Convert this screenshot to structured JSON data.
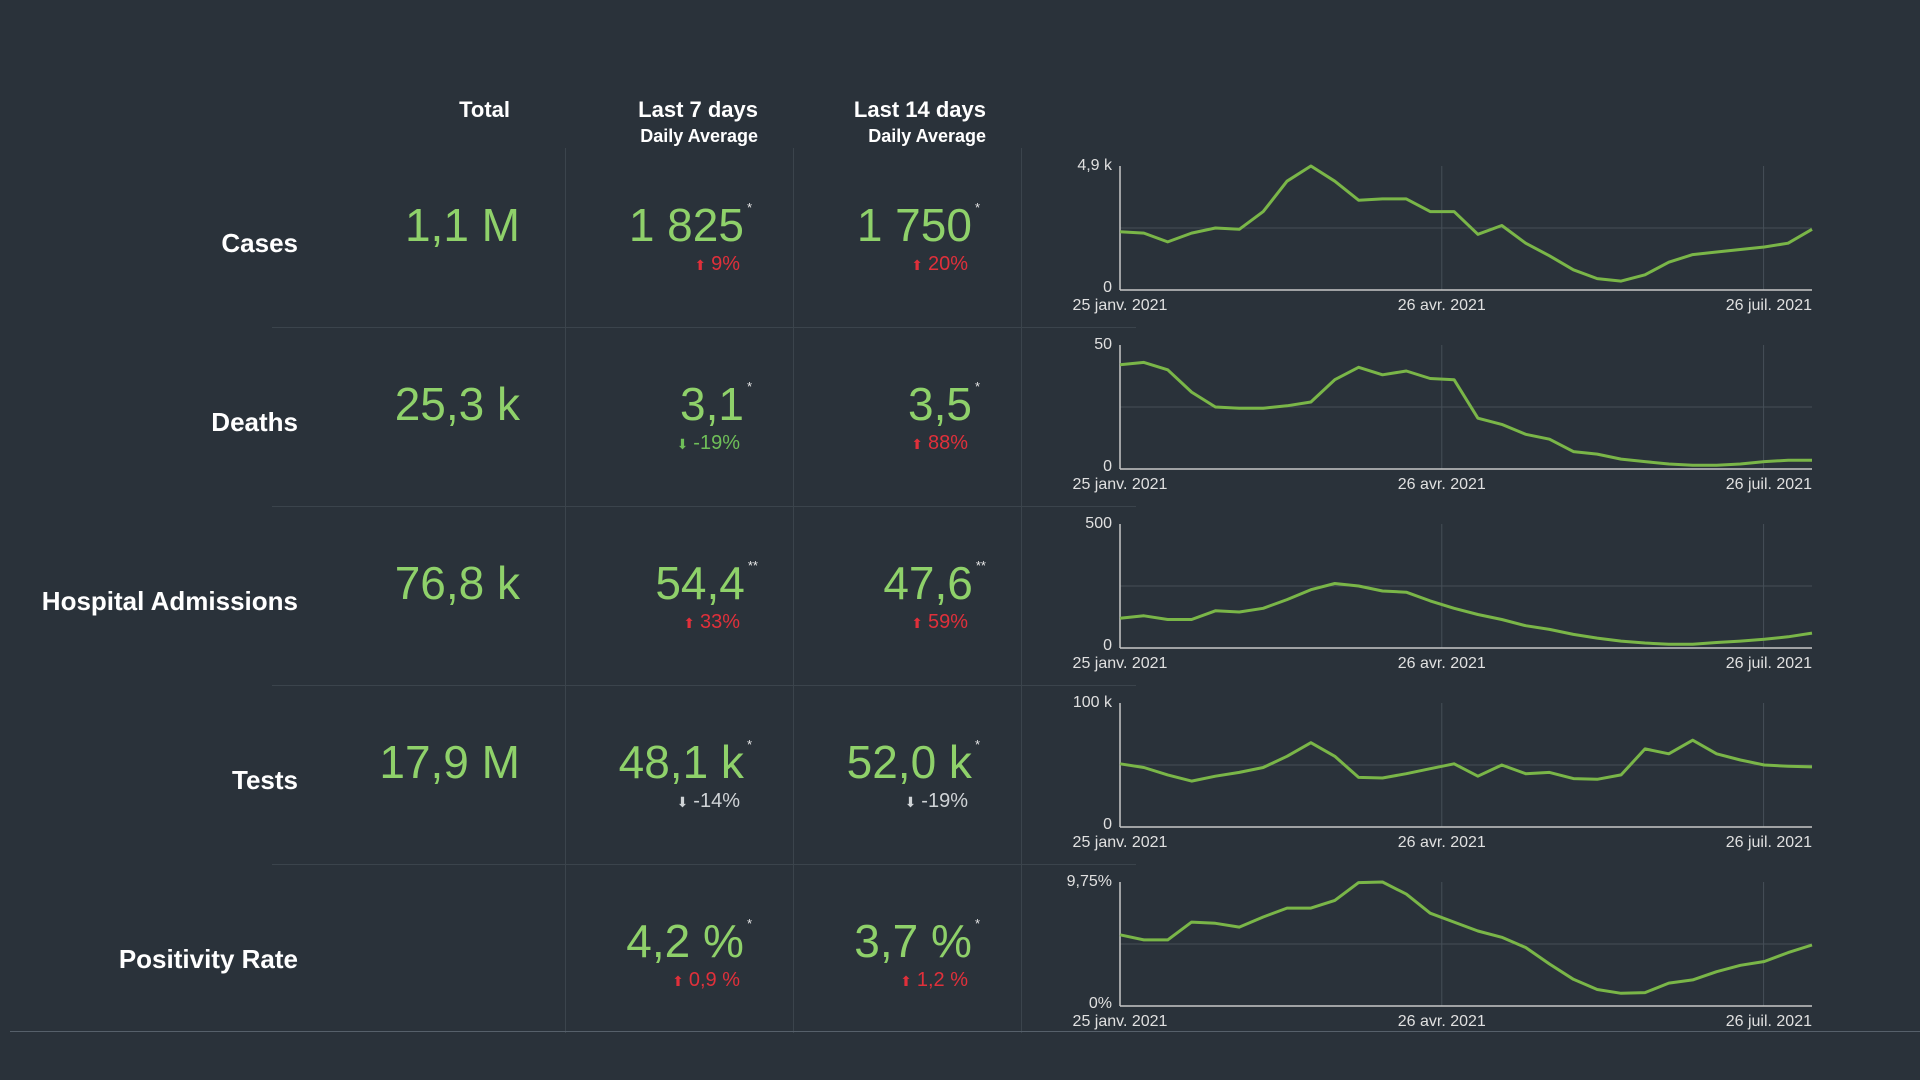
{
  "headers": {
    "total": "Total",
    "last7": "Last 7 days",
    "last7_sub": "Daily Average",
    "last14": "Last 14 days",
    "last14_sub": "Daily Average"
  },
  "colors": {
    "background": "#2a323a",
    "value_green": "#8fd16a",
    "line_green": "#7ab648",
    "increase_red": "#e0303a",
    "decrease_green": "#6fbf58",
    "neutral_gray": "#cfd3d6"
  },
  "rows": [
    {
      "label": "Cases",
      "total": "1,1 M",
      "d7": "1 825",
      "d7_mark": "*",
      "d7_change": "9%",
      "d7_dir": "up",
      "d14": "1 750",
      "d14_mark": "*",
      "d14_change": "20%",
      "d14_dir": "up"
    },
    {
      "label": "Deaths",
      "total": "25,3 k",
      "d7": "3,1",
      "d7_mark": "*",
      "d7_change": "-19%",
      "d7_dir": "down",
      "d14": "3,5",
      "d14_mark": "*",
      "d14_change": "88%",
      "d14_dir": "up"
    },
    {
      "label": "Hospital Admissions",
      "total": "76,8 k",
      "d7": "54,4",
      "d7_mark": "**",
      "d7_change": "33%",
      "d7_dir": "up",
      "d14": "47,6",
      "d14_mark": "**",
      "d14_change": "59%",
      "d14_dir": "up"
    },
    {
      "label": "Tests",
      "total": "17,9 M",
      "d7": "48,1 k",
      "d7_mark": "*",
      "d7_change": "-14%",
      "d7_dir": "down-neutral",
      "d14": "52,0 k",
      "d14_mark": "*",
      "d14_change": "-19%",
      "d14_dir": "down-neutral"
    },
    {
      "label": "Positivity Rate",
      "total": "",
      "d7": "4,2 %",
      "d7_mark": "*",
      "d7_change": "0,9 %",
      "d7_dir": "up",
      "d14": "3,7 %",
      "d14_mark": "*",
      "d14_change": "1,2 %",
      "d14_dir": "up"
    }
  ],
  "chart_data": [
    {
      "type": "line",
      "x_ticks": [
        "25 janv. 2021",
        "26 avr. 2021",
        "26 juil. 2021"
      ],
      "y_ticks": [
        "0",
        "4,9 k"
      ],
      "ylim": [
        0,
        4900
      ],
      "values": [
        2300,
        2250,
        1900,
        2250,
        2450,
        2400,
        3100,
        4300,
        4900,
        4300,
        3550,
        3600,
        3600,
        3100,
        3100,
        2200,
        2550,
        1850,
        1350,
        800,
        450,
        350,
        600,
        1100,
        1400,
        1500,
        1600,
        1700,
        1850,
        2400
      ],
      "ytop_offset": 0
    },
    {
      "type": "line",
      "x_ticks": [
        "25 janv. 2021",
        "26 avr. 2021",
        "26 juil. 2021"
      ],
      "y_ticks": [
        "0",
        "50"
      ],
      "ylim": [
        0,
        50
      ],
      "values": [
        42,
        43,
        40,
        31,
        25,
        24.5,
        24.5,
        25.5,
        27,
        36,
        41,
        38,
        39.5,
        36.5,
        36,
        20.5,
        18,
        14,
        12,
        7,
        6,
        4,
        3,
        2,
        1.5,
        1.5,
        2,
        3,
        3.5,
        3.5
      ],
      "ytop_offset": 0
    },
    {
      "type": "line",
      "x_ticks": [
        "25 janv. 2021",
        "26 avr. 2021",
        "26 juil. 2021"
      ],
      "y_ticks": [
        "0",
        "500"
      ],
      "ylim": [
        0,
        500
      ],
      "values": [
        120,
        130,
        115,
        115,
        150,
        145,
        160,
        195,
        235,
        260,
        250,
        230,
        225,
        190,
        160,
        135,
        115,
        90,
        75,
        55,
        40,
        28,
        20,
        15,
        15,
        22,
        28,
        35,
        45,
        60
      ],
      "ytop_offset": 0
    },
    {
      "type": "line",
      "x_ticks": [
        "25 janv. 2021",
        "26 avr. 2021",
        "26 juil. 2021"
      ],
      "y_ticks": [
        "0",
        "100 k"
      ],
      "ylim": [
        0,
        100000
      ],
      "values": [
        51000,
        48000,
        42000,
        37000,
        41000,
        44000,
        48000,
        57000,
        68000,
        57000,
        40000,
        39500,
        43000,
        47000,
        51000,
        41000,
        50000,
        43000,
        44000,
        39000,
        38500,
        42000,
        63000,
        59000,
        70000,
        59000,
        54000,
        50000,
        49000,
        48500
      ],
      "ytop_offset": 0
    },
    {
      "type": "line",
      "x_ticks": [
        "25 janv. 2021",
        "26 avr. 2021",
        "26 juil. 2021"
      ],
      "y_ticks": [
        "0%",
        "9,75%"
      ],
      "ylim": [
        0,
        9.75
      ],
      "values": [
        5.6,
        5.2,
        5.2,
        6.6,
        6.5,
        6.2,
        7.0,
        7.7,
        7.7,
        8.3,
        9.7,
        9.75,
        8.8,
        7.3,
        6.6,
        5.9,
        5.4,
        4.6,
        3.3,
        2.1,
        1.3,
        1.0,
        1.05,
        1.8,
        2.05,
        2.7,
        3.2,
        3.5,
        4.2,
        4.8
      ],
      "ytop_offset": 0
    }
  ]
}
